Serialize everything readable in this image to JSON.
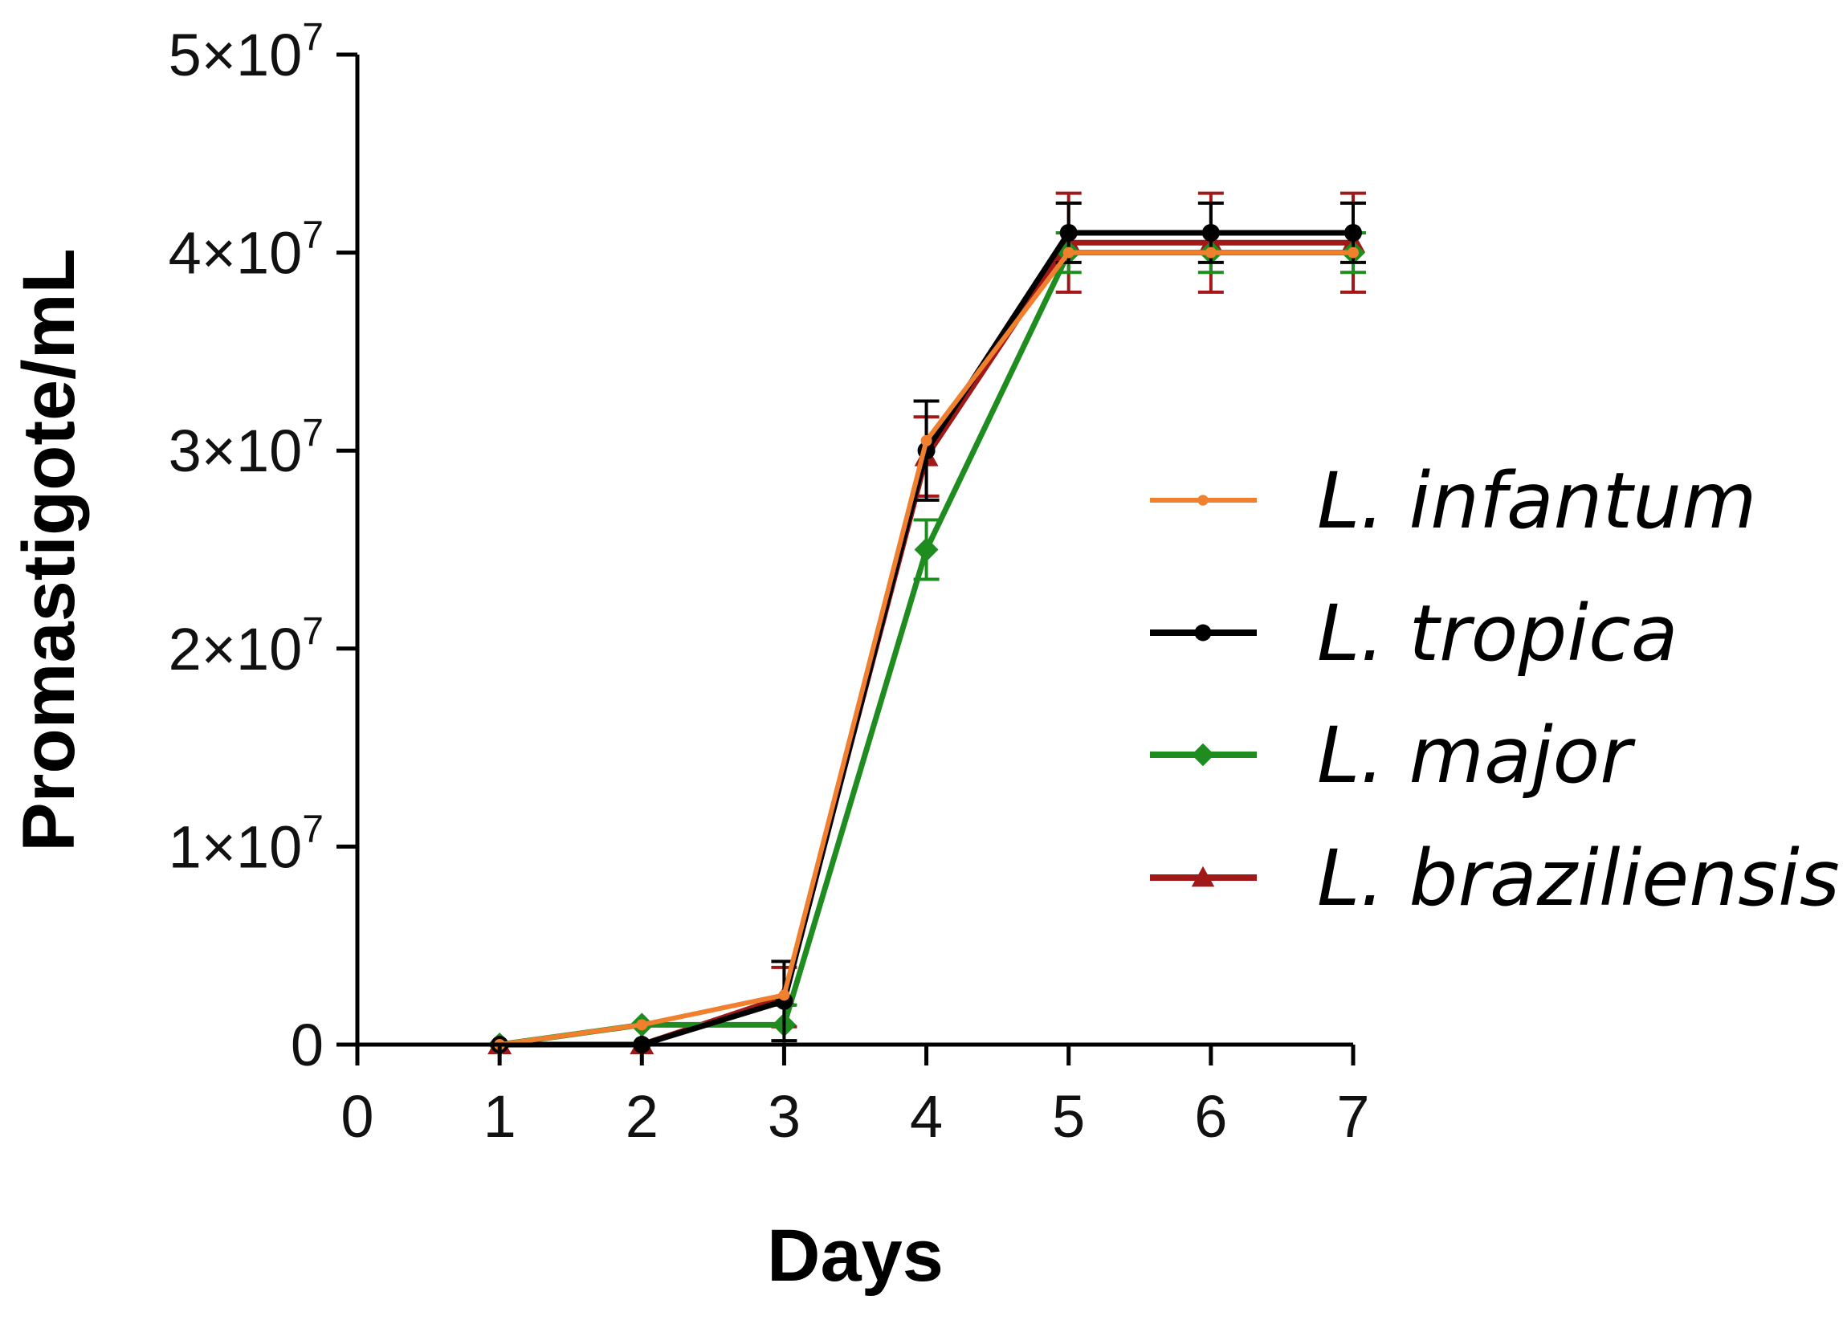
{
  "chart_data": {
    "type": "line",
    "title": "",
    "xlabel": "Days",
    "ylabel": "Promastigote/mL",
    "xlim": [
      0,
      7
    ],
    "ylim": [
      0,
      50000000
    ],
    "grid": false,
    "legend_position": "right",
    "x_ticks": [
      {
        "value": 0,
        "label": "0"
      },
      {
        "value": 1,
        "label": "1"
      },
      {
        "value": 2,
        "label": "2"
      },
      {
        "value": 3,
        "label": "3"
      },
      {
        "value": 4,
        "label": "4"
      },
      {
        "value": 5,
        "label": "5"
      },
      {
        "value": 6,
        "label": "6"
      },
      {
        "value": 7,
        "label": "7"
      }
    ],
    "y_ticks": [
      {
        "value": 0,
        "label": "0"
      },
      {
        "value": 10000000,
        "mantissa": "1×10",
        "exponent": "7"
      },
      {
        "value": 20000000,
        "mantissa": "2×10",
        "exponent": "7"
      },
      {
        "value": 30000000,
        "mantissa": "3×10",
        "exponent": "7"
      },
      {
        "value": 40000000,
        "mantissa": "4×10",
        "exponent": "7"
      },
      {
        "value": 50000000,
        "mantissa": "5×10",
        "exponent": "7"
      }
    ],
    "x": [
      1,
      2,
      3,
      4,
      5,
      6,
      7
    ],
    "series": [
      {
        "name": "L. infantum",
        "color": "#f07f2e",
        "marker": "dot",
        "values": [
          0,
          1000000,
          2500000,
          30500000,
          40000000,
          40000000,
          40000000
        ],
        "errors": [
          0,
          0,
          0,
          0,
          0,
          0,
          0
        ]
      },
      {
        "name": "L. tropica",
        "color": "#000000",
        "marker": "circle",
        "values": [
          0,
          0,
          2200000,
          30000000,
          41000000,
          41000000,
          41000000
        ],
        "errors": [
          0,
          0,
          2000000,
          2500000,
          1500000,
          1500000,
          1500000
        ]
      },
      {
        "name": "L. major",
        "color": "#1e8c1e",
        "marker": "diamond",
        "values": [
          0,
          1000000,
          1000000,
          25000000,
          40000000,
          40000000,
          40000000
        ],
        "errors": [
          0,
          0,
          1000000,
          1500000,
          1000000,
          1000000,
          1000000
        ]
      },
      {
        "name": "L. braziliensis",
        "color": "#a01818",
        "marker": "triangle",
        "values": [
          0,
          0,
          2400000,
          29700000,
          40500000,
          40500000,
          40500000
        ],
        "errors": [
          0,
          0,
          1500000,
          2000000,
          2500000,
          2500000,
          2500000
        ]
      }
    ]
  }
}
